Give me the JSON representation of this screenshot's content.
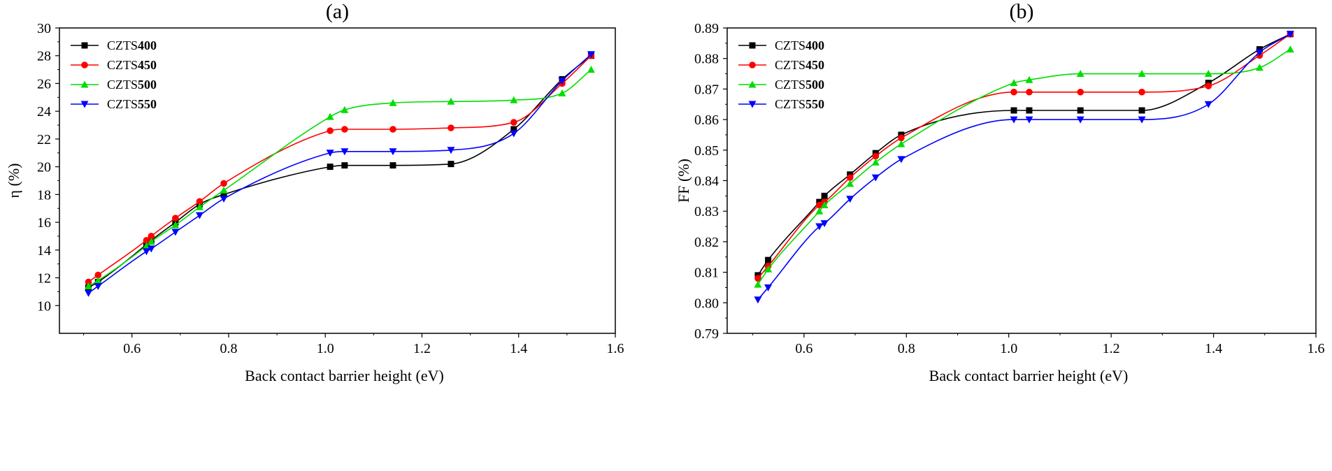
{
  "chart_data": [
    {
      "type": "line",
      "panel_label": "(a)",
      "xlabel": "Back contact barrier height (eV)",
      "ylabel": "η (%)",
      "xlim": [
        0.45,
        1.6
      ],
      "ylim": [
        8,
        30
      ],
      "xticks": [
        0.6,
        0.8,
        1.0,
        1.2,
        1.4,
        1.6
      ],
      "xtick_labels": [
        "0.6",
        "0.8",
        "1.0",
        "1.2",
        "1.4",
        "1.6"
      ],
      "yticks": [
        10,
        12,
        14,
        16,
        18,
        20,
        22,
        24,
        26,
        28,
        30
      ],
      "ytick_labels": [
        "10",
        "12",
        "14",
        "16",
        "18",
        "20",
        "22",
        "24",
        "26",
        "28",
        "30"
      ],
      "x": [
        0.51,
        0.53,
        0.63,
        0.64,
        0.69,
        0.74,
        0.79,
        1.01,
        1.04,
        1.14,
        1.26,
        1.39,
        1.49,
        1.55
      ],
      "legend_position": "top-left",
      "series": [
        {
          "name": "CZTS400",
          "name_prefix": "CZTS",
          "name_suffix": "400",
          "color": "#000000",
          "marker": "square",
          "values": [
            11.3,
            11.7,
            14.4,
            14.7,
            16.0,
            17.3,
            18.0,
            20.0,
            20.1,
            20.1,
            20.2,
            22.7,
            26.3,
            28.0
          ]
        },
        {
          "name": "CZTS450",
          "name_prefix": "CZTS",
          "name_suffix": "450",
          "color": "#ff0000",
          "marker": "circle",
          "values": [
            11.7,
            12.2,
            14.7,
            15.0,
            16.3,
            17.5,
            18.8,
            22.6,
            22.7,
            22.7,
            22.8,
            23.2,
            26.0,
            28.0
          ]
        },
        {
          "name": "CZTS500",
          "name_prefix": "CZTS",
          "name_suffix": "500",
          "color": "#00dd00",
          "marker": "triangle-up",
          "values": [
            11.4,
            11.8,
            14.3,
            14.6,
            15.8,
            17.1,
            18.3,
            23.6,
            24.1,
            24.6,
            24.7,
            24.8,
            25.3,
            27.0
          ]
        },
        {
          "name": "CZTS550",
          "name_prefix": "CZTS",
          "name_suffix": "550",
          "color": "#0000ff",
          "marker": "triangle-down",
          "values": [
            10.9,
            11.4,
            13.9,
            14.1,
            15.3,
            16.5,
            17.7,
            21.0,
            21.1,
            21.1,
            21.2,
            22.4,
            26.2,
            28.1
          ]
        }
      ]
    },
    {
      "type": "line",
      "panel_label": "(b)",
      "xlabel": "Back contact barrier height (eV)",
      "ylabel": "FF (%)",
      "xlim": [
        0.45,
        1.6
      ],
      "ylim": [
        0.79,
        0.89
      ],
      "xticks": [
        0.6,
        0.8,
        1.0,
        1.2,
        1.4,
        1.6
      ],
      "xtick_labels": [
        "0.6",
        "0.8",
        "1.0",
        "1.2",
        "1.4",
        "1.6"
      ],
      "yticks": [
        0.79,
        0.8,
        0.81,
        0.82,
        0.83,
        0.84,
        0.85,
        0.86,
        0.87,
        0.88,
        0.89
      ],
      "ytick_labels": [
        "0.79",
        "0.80",
        "0.81",
        "0.82",
        "0.83",
        "0.84",
        "0.85",
        "0.86",
        "0.87",
        "0.88",
        "0.89"
      ],
      "x": [
        0.51,
        0.53,
        0.63,
        0.64,
        0.69,
        0.74,
        0.79,
        1.01,
        1.04,
        1.14,
        1.26,
        1.39,
        1.49,
        1.55
      ],
      "legend_position": "top-left",
      "series": [
        {
          "name": "CZTS400",
          "name_prefix": "CZTS",
          "name_suffix": "400",
          "color": "#000000",
          "marker": "square",
          "values": [
            0.809,
            0.814,
            0.833,
            0.835,
            0.842,
            0.849,
            0.855,
            0.863,
            0.863,
            0.863,
            0.863,
            0.872,
            0.883,
            0.888
          ]
        },
        {
          "name": "CZTS450",
          "name_prefix": "CZTS",
          "name_suffix": "450",
          "color": "#ff0000",
          "marker": "circle",
          "values": [
            0.808,
            0.812,
            0.832,
            0.833,
            0.841,
            0.848,
            0.854,
            0.869,
            0.869,
            0.869,
            0.869,
            0.871,
            0.881,
            0.888
          ]
        },
        {
          "name": "CZTS500",
          "name_prefix": "CZTS",
          "name_suffix": "500",
          "color": "#00dd00",
          "marker": "triangle-up",
          "values": [
            0.806,
            0.811,
            0.83,
            0.832,
            0.839,
            0.846,
            0.852,
            0.872,
            0.873,
            0.875,
            0.875,
            0.875,
            0.877,
            0.883
          ]
        },
        {
          "name": "CZTS550",
          "name_prefix": "CZTS",
          "name_suffix": "550",
          "color": "#0000ff",
          "marker": "triangle-down",
          "values": [
            0.801,
            0.805,
            0.825,
            0.826,
            0.834,
            0.841,
            0.847,
            0.86,
            0.86,
            0.86,
            0.86,
            0.865,
            0.882,
            0.888
          ]
        }
      ]
    }
  ]
}
